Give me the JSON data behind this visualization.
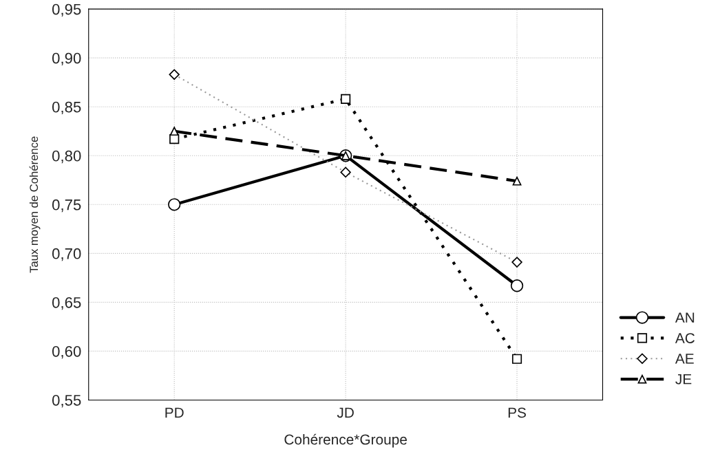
{
  "chart_data": {
    "type": "line",
    "xlabel": "Cohérence*Groupe",
    "ylabel": "Taux moyen de Cohérence",
    "categories": [
      "PD",
      "JD",
      "PS"
    ],
    "series": [
      {
        "name": "AN",
        "color": "#000000",
        "values": [
          0.75,
          0.8,
          0.667
        ],
        "marker": "circle",
        "line_style": "solid"
      },
      {
        "name": "AC",
        "color": "#000000",
        "values": [
          0.817,
          0.858,
          0.592
        ],
        "marker": "square",
        "line_style": "dotted"
      },
      {
        "name": "AE",
        "color": "#999999",
        "values": [
          0.883,
          0.783,
          0.691
        ],
        "marker": "diamond",
        "line_style": "dotted"
      },
      {
        "name": "JE",
        "color": "#000000",
        "values": [
          0.825,
          0.8,
          0.774
        ],
        "marker": "triangle",
        "line_style": "dashed"
      }
    ],
    "ylim": [
      0.55,
      0.95
    ],
    "yticks": [
      {
        "value": 0.55,
        "label": "0,55"
      },
      {
        "value": 0.6,
        "label": "0,60"
      },
      {
        "value": 0.65,
        "label": "0,65"
      },
      {
        "value": 0.7,
        "label": "0,70"
      },
      {
        "value": 0.75,
        "label": "0,75"
      },
      {
        "value": 0.8,
        "label": "0,80"
      },
      {
        "value": 0.85,
        "label": "0,85"
      },
      {
        "value": 0.9,
        "label": "0,90"
      },
      {
        "value": 0.95,
        "label": "0,95"
      }
    ],
    "grid": true,
    "legend": "bottom right"
  }
}
